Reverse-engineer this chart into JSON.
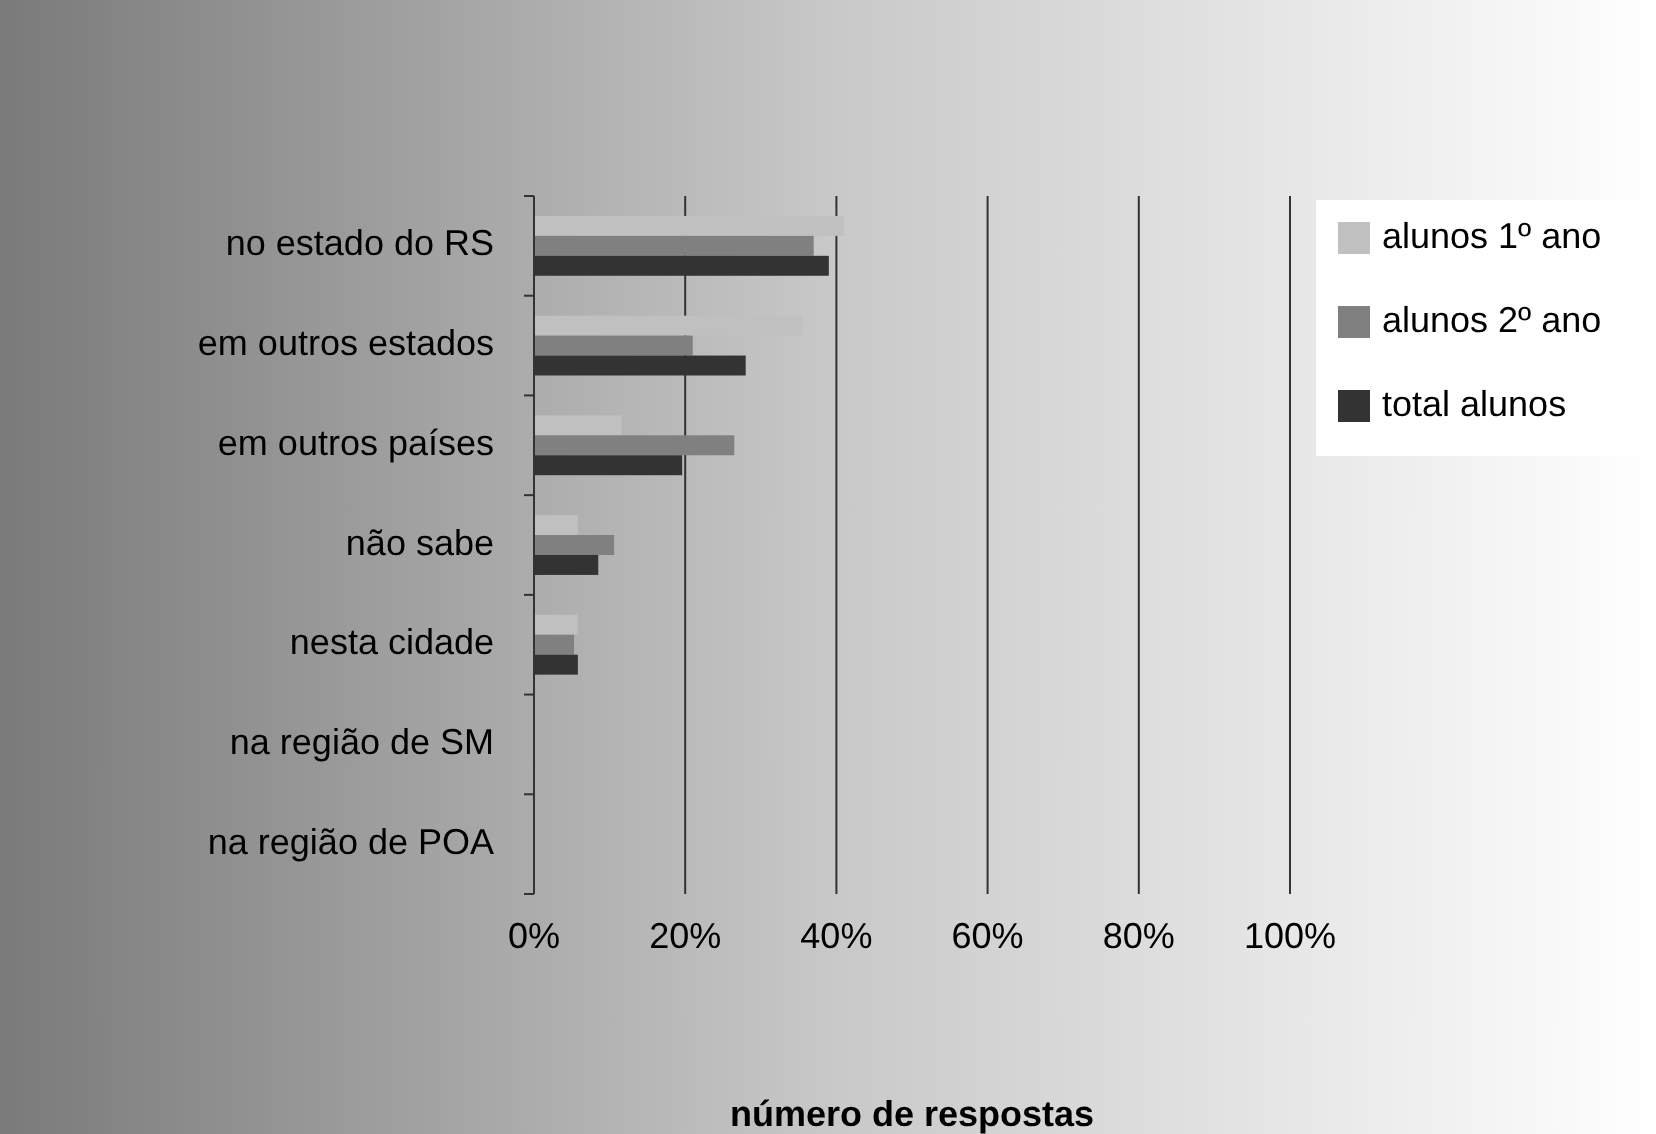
{
  "chart_data": {
    "type": "bar",
    "orientation": "horizontal",
    "xlabel": "número de respostas",
    "categories": [
      "no estado do RS",
      "em outros estados",
      "em outros países",
      "não sabe",
      "nesta cidade",
      "na região de SM",
      "na região de POA"
    ],
    "series": [
      {
        "name": "alunos 1º ano",
        "color": "#c0c0c0",
        "values": [
          41,
          35.5,
          11.6,
          5.8,
          5.8,
          0,
          0
        ]
      },
      {
        "name": "alunos 2º ano",
        "color": "#808080",
        "values": [
          37,
          21,
          26.5,
          10.6,
          5.3,
          0,
          0
        ]
      },
      {
        "name": "total alunos",
        "color": "#333333",
        "values": [
          39,
          28,
          19.6,
          8.5,
          5.8,
          0,
          0
        ]
      }
    ],
    "xlim": [
      0,
      100
    ],
    "xticks": [
      {
        "value": 0,
        "label": "0%"
      },
      {
        "value": 20,
        "label": "20%"
      },
      {
        "value": 40,
        "label": "40%"
      },
      {
        "value": 60,
        "label": "60%"
      },
      {
        "value": 80,
        "label": "80%"
      },
      {
        "value": 100,
        "label": "100%"
      }
    ],
    "grid": "x",
    "legend": "right"
  }
}
